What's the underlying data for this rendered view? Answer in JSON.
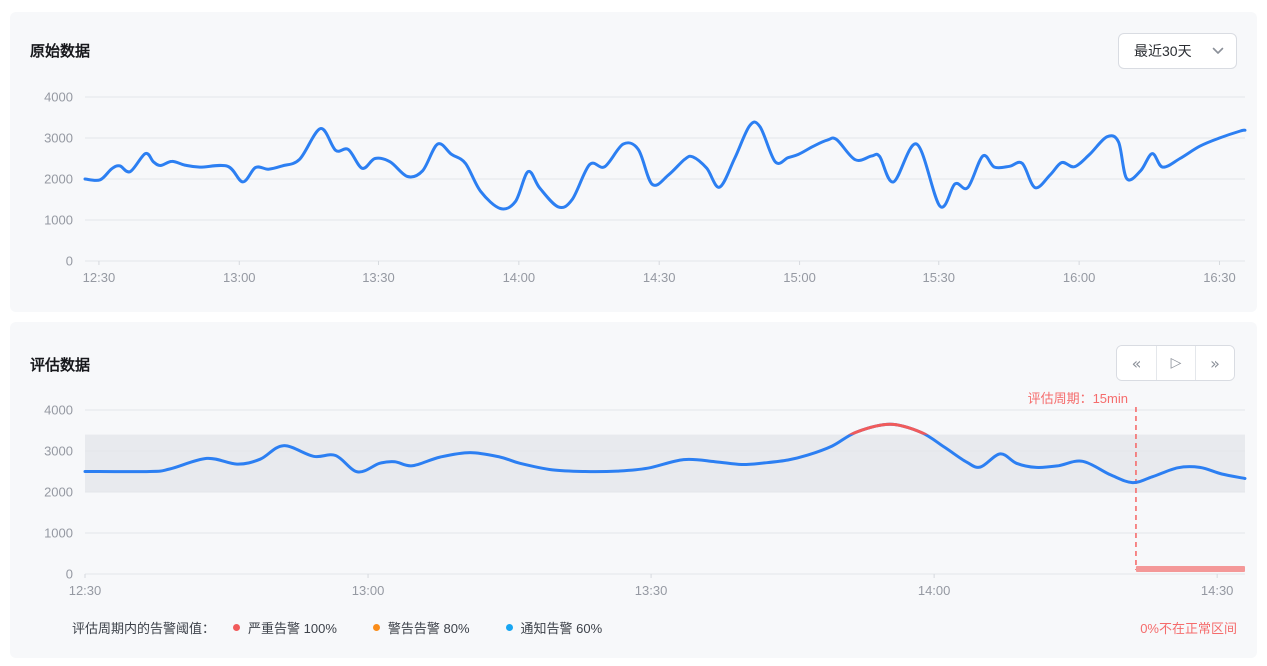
{
  "panel_raw": {
    "title": "原始数据",
    "range_select": {
      "value": "最近30天",
      "icon": "chevron-down"
    }
  },
  "panel_eval": {
    "title": "评估数据",
    "controls": {
      "step_back": "«",
      "play": "▷",
      "step_forward": "»",
      "icons": [
        "double-chevron-left",
        "play-outline",
        "double-chevron-right"
      ]
    },
    "annotation": "评估周期：15min",
    "legend_prefix": "评估周期内的告警阈值：",
    "legend_items": [
      {
        "label": "严重告警 100%",
        "color": "#f15b5b"
      },
      {
        "label": "警告告警 80%",
        "color": "#fa8d1a"
      },
      {
        "label": "通知告警 60%",
        "color": "#18a6f2"
      }
    ],
    "note": "0%不在正常区间"
  },
  "colors": {
    "line_blue": "#2c7ff2",
    "exceed_red": "#f15b5b",
    "marker_red": "#f56c6c",
    "out_of_range_bar": "#f49898",
    "band_gray": "#e8eaee",
    "grid": "#e3e6ea",
    "axis_label": "#9599a2",
    "panel_bg": "#f7f8fa"
  },
  "chart_data": [
    {
      "type": "line",
      "title": "原始数据",
      "xlabel": "",
      "ylabel": "",
      "ylim": [
        0,
        4000
      ],
      "yticks": [
        0,
        1000,
        2000,
        3000,
        4000
      ],
      "grid": true,
      "grid_color": "#e3e6ea",
      "axis_color": "#9599a2",
      "xticks": [
        {
          "label": "12:30",
          "f": 0.012
        },
        {
          "label": "13:00",
          "f": 0.133
        },
        {
          "label": "13:30",
          "f": 0.253
        },
        {
          "label": "14:00",
          "f": 0.374
        },
        {
          "label": "14:30",
          "f": 0.495
        },
        {
          "label": "15:00",
          "f": 0.616
        },
        {
          "label": "15:30",
          "f": 0.736
        },
        {
          "label": "16:00",
          "f": 0.857
        },
        {
          "label": "16:30",
          "f": 0.978
        }
      ],
      "series": [
        {
          "name": "原始数据",
          "color": "#2c7ff2",
          "points": [
            [
              0.0,
              2000
            ],
            [
              0.013,
              1980
            ],
            [
              0.023,
              2250
            ],
            [
              0.03,
              2320
            ],
            [
              0.039,
              2180
            ],
            [
              0.052,
              2620
            ],
            [
              0.059,
              2420
            ],
            [
              0.065,
              2330
            ],
            [
              0.075,
              2430
            ],
            [
              0.086,
              2340
            ],
            [
              0.099,
              2290
            ],
            [
              0.123,
              2310
            ],
            [
              0.136,
              1930
            ],
            [
              0.147,
              2280
            ],
            [
              0.158,
              2240
            ],
            [
              0.17,
              2320
            ],
            [
              0.185,
              2480
            ],
            [
              0.203,
              3230
            ],
            [
              0.216,
              2700
            ],
            [
              0.227,
              2720
            ],
            [
              0.239,
              2260
            ],
            [
              0.25,
              2500
            ],
            [
              0.263,
              2420
            ],
            [
              0.278,
              2060
            ],
            [
              0.291,
              2200
            ],
            [
              0.304,
              2850
            ],
            [
              0.316,
              2600
            ],
            [
              0.328,
              2380
            ],
            [
              0.341,
              1700
            ],
            [
              0.358,
              1280
            ],
            [
              0.371,
              1450
            ],
            [
              0.382,
              2180
            ],
            [
              0.392,
              1780
            ],
            [
              0.408,
              1320
            ],
            [
              0.42,
              1500
            ],
            [
              0.435,
              2350
            ],
            [
              0.448,
              2300
            ],
            [
              0.464,
              2850
            ],
            [
              0.477,
              2720
            ],
            [
              0.489,
              1870
            ],
            [
              0.503,
              2100
            ],
            [
              0.517,
              2480
            ],
            [
              0.524,
              2540
            ],
            [
              0.536,
              2260
            ],
            [
              0.547,
              1800
            ],
            [
              0.56,
              2500
            ],
            [
              0.573,
              3300
            ],
            [
              0.582,
              3270
            ],
            [
              0.595,
              2420
            ],
            [
              0.606,
              2520
            ],
            [
              0.615,
              2600
            ],
            [
              0.628,
              2800
            ],
            [
              0.64,
              2950
            ],
            [
              0.648,
              2960
            ],
            [
              0.664,
              2470
            ],
            [
              0.678,
              2560
            ],
            [
              0.685,
              2550
            ],
            [
              0.697,
              1930
            ],
            [
              0.717,
              2850
            ],
            [
              0.737,
              1340
            ],
            [
              0.75,
              1880
            ],
            [
              0.761,
              1790
            ],
            [
              0.774,
              2560
            ],
            [
              0.784,
              2290
            ],
            [
              0.797,
              2310
            ],
            [
              0.808,
              2380
            ],
            [
              0.819,
              1790
            ],
            [
              0.832,
              2100
            ],
            [
              0.842,
              2400
            ],
            [
              0.853,
              2300
            ],
            [
              0.866,
              2600
            ],
            [
              0.881,
              3030
            ],
            [
              0.891,
              2900
            ],
            [
              0.898,
              2010
            ],
            [
              0.91,
              2200
            ],
            [
              0.92,
              2620
            ],
            [
              0.929,
              2290
            ],
            [
              0.944,
              2500
            ],
            [
              0.961,
              2800
            ],
            [
              0.978,
              3000
            ],
            [
              0.996,
              3170
            ],
            [
              1.0,
              3190
            ]
          ]
        }
      ]
    },
    {
      "type": "line",
      "title": "评估数据",
      "xlabel": "",
      "ylabel": "",
      "ylim": [
        0,
        4000
      ],
      "yticks": [
        0,
        1000,
        2000,
        3000,
        4000
      ],
      "grid": true,
      "grid_color": "#e3e6ea",
      "axis_color": "#9599a2",
      "xticks": [
        {
          "label": "12:30",
          "f": 0.0
        },
        {
          "label": "13:00",
          "f": 0.244
        },
        {
          "label": "13:30",
          "f": 0.488
        },
        {
          "label": "14:00",
          "f": 0.732
        },
        {
          "label": "14:30",
          "f": 0.976
        }
      ],
      "band": {
        "from": 2000,
        "to": 3400,
        "color": "#e8eaee",
        "meaning": "正常区间"
      },
      "exceed_color": "#f15b5b",
      "vline": {
        "f": 0.906,
        "color": "#f56c6c",
        "label": "评估周期：15min"
      },
      "out_of_range_bar": {
        "from_f": 0.906,
        "to_f": 1.0,
        "color": "#f49898"
      },
      "series": [
        {
          "name": "评估数据",
          "color": "#2c7ff2",
          "points": [
            [
              0.0,
              2500
            ],
            [
              0.056,
              2500
            ],
            [
              0.073,
              2560
            ],
            [
              0.105,
              2820
            ],
            [
              0.131,
              2680
            ],
            [
              0.151,
              2800
            ],
            [
              0.171,
              3130
            ],
            [
              0.197,
              2870
            ],
            [
              0.216,
              2890
            ],
            [
              0.235,
              2490
            ],
            [
              0.254,
              2700
            ],
            [
              0.267,
              2740
            ],
            [
              0.282,
              2640
            ],
            [
              0.306,
              2850
            ],
            [
              0.332,
              2960
            ],
            [
              0.358,
              2850
            ],
            [
              0.375,
              2700
            ],
            [
              0.403,
              2540
            ],
            [
              0.431,
              2500
            ],
            [
              0.459,
              2510
            ],
            [
              0.485,
              2580
            ],
            [
              0.516,
              2790
            ],
            [
              0.543,
              2740
            ],
            [
              0.566,
              2670
            ],
            [
              0.586,
              2710
            ],
            [
              0.606,
              2780
            ],
            [
              0.623,
              2900
            ],
            [
              0.644,
              3120
            ],
            [
              0.665,
              3460
            ],
            [
              0.694,
              3650
            ],
            [
              0.721,
              3450
            ],
            [
              0.741,
              3090
            ],
            [
              0.76,
              2730
            ],
            [
              0.772,
              2610
            ],
            [
              0.789,
              2930
            ],
            [
              0.803,
              2700
            ],
            [
              0.82,
              2600
            ],
            [
              0.839,
              2640
            ],
            [
              0.86,
              2750
            ],
            [
              0.884,
              2420
            ],
            [
              0.903,
              2230
            ],
            [
              0.92,
              2370
            ],
            [
              0.942,
              2590
            ],
            [
              0.961,
              2600
            ],
            [
              0.98,
              2440
            ],
            [
              1.0,
              2330
            ]
          ]
        }
      ]
    }
  ]
}
